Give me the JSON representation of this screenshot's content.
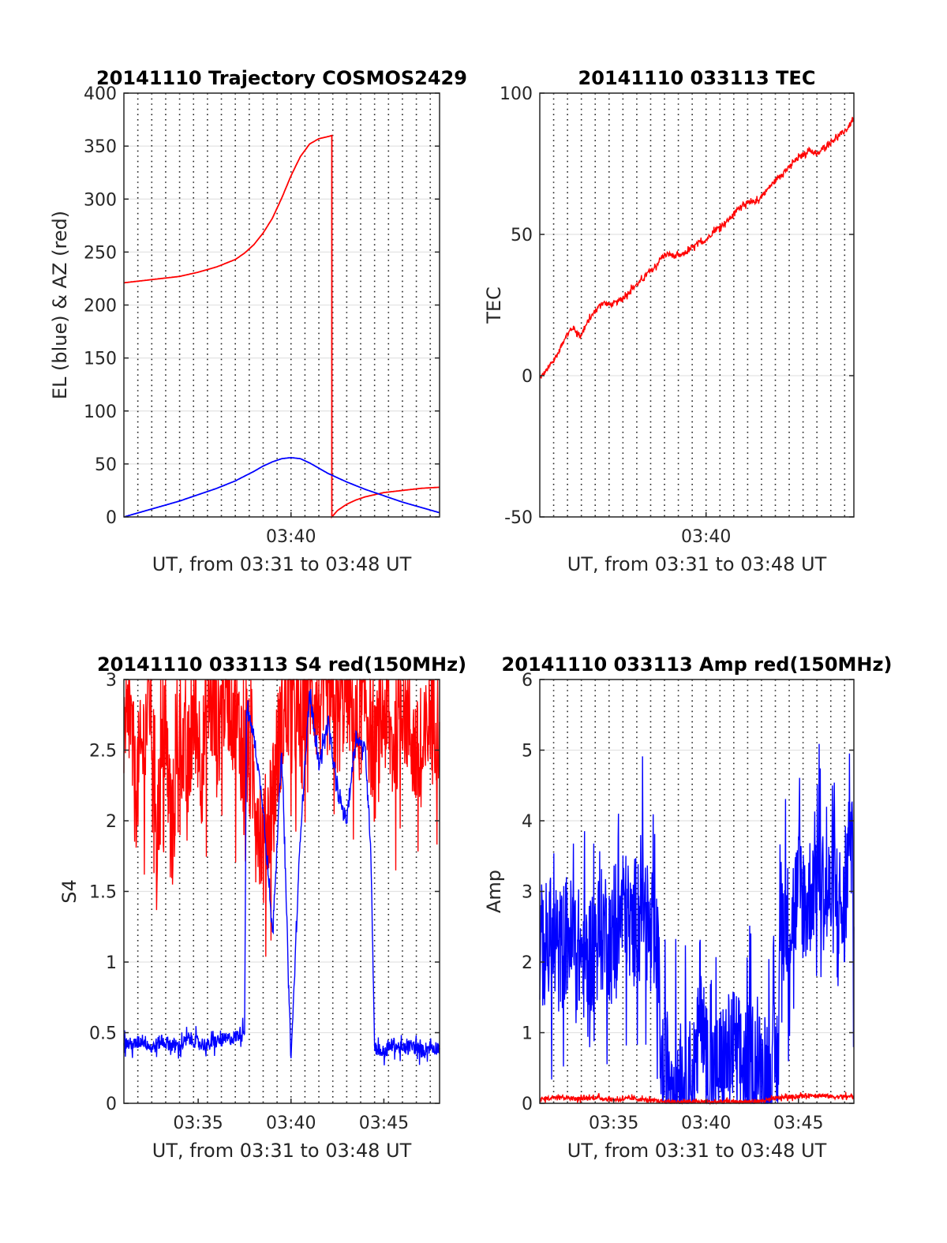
{
  "chart_data": [
    {
      "id": "trajectory",
      "type": "line",
      "title": "20141110 Trajectory COSMOS2429",
      "xlabel": "UT, from 03:31 to 03:48 UT",
      "ylabel": "EL (blue) & AZ (red)",
      "xlim": [
        31.0,
        48.0
      ],
      "ylim": [
        0,
        400
      ],
      "xticks": [
        {
          "v": 40,
          "label": "03:40"
        }
      ],
      "yticks": [
        {
          "v": 0,
          "label": "0"
        },
        {
          "v": 50,
          "label": "50"
        },
        {
          "v": 100,
          "label": "100"
        },
        {
          "v": 150,
          "label": "150"
        },
        {
          "v": 200,
          "label": "200"
        },
        {
          "v": 250,
          "label": "250"
        },
        {
          "v": 300,
          "label": "300"
        },
        {
          "v": 350,
          "label": "350"
        },
        {
          "v": 400,
          "label": "400"
        }
      ],
      "grid": {
        "horizontal": "solid",
        "vertical": "dotted",
        "vertical_step_minutes": 0.75
      },
      "series": [
        {
          "color": "#ff0000",
          "x": [
            31.0,
            32.0,
            33.0,
            34.0,
            35.0,
            36.0,
            37.0,
            37.5,
            38.0,
            38.5,
            39.0,
            39.5,
            40.0,
            40.5,
            41.0,
            41.5,
            42.0,
            42.2,
            42.2,
            42.5,
            43.0,
            43.5,
            44.0,
            44.5,
            45.0,
            46.0,
            47.0,
            48.0
          ],
          "y": [
            221,
            223,
            225,
            227,
            231,
            236,
            243,
            249,
            257,
            268,
            282,
            301,
            322,
            340,
            352,
            357,
            359,
            360,
            0,
            6,
            12,
            16,
            19,
            21,
            23,
            25,
            27,
            28
          ]
        },
        {
          "color": "#0000ff",
          "x": [
            31.0,
            32.0,
            33.0,
            34.0,
            35.0,
            36.0,
            37.0,
            38.0,
            38.5,
            39.0,
            39.5,
            40.0,
            40.5,
            41.0,
            41.5,
            42.0,
            43.0,
            44.0,
            45.0,
            46.0,
            47.0,
            48.0
          ],
          "y": [
            0,
            5,
            10,
            15,
            21,
            27,
            34,
            43,
            48,
            52,
            55,
            56,
            55,
            51,
            46,
            41,
            33,
            26,
            20,
            14,
            9,
            4
          ]
        }
      ]
    },
    {
      "id": "tec",
      "type": "line",
      "title": "20141110 033113 TEC",
      "xlabel": "UT, from 03:31 to 03:48 UT",
      "ylabel": "TEC",
      "xlim": [
        31.0,
        48.0
      ],
      "ylim": [
        -50,
        100
      ],
      "xticks": [
        {
          "v": 40,
          "label": "03:40"
        }
      ],
      "yticks": [
        {
          "v": -50,
          "label": "-50"
        },
        {
          "v": 0,
          "label": "0"
        },
        {
          "v": 50,
          "label": "50"
        },
        {
          "v": 100,
          "label": "100"
        }
      ],
      "grid": {
        "horizontal": "solid",
        "vertical": "dotted",
        "vertical_step_minutes": 0.75
      },
      "series": [
        {
          "color": "#ff0000",
          "x": [
            31.0,
            31.5,
            32.0,
            32.4,
            32.8,
            33.2,
            33.6,
            34.0,
            34.4,
            34.8,
            35.2,
            35.6,
            36.0,
            36.4,
            36.8,
            37.2,
            37.6,
            38.0,
            38.4,
            38.8,
            39.2,
            39.6,
            40.0,
            40.4,
            40.8,
            41.2,
            41.6,
            42.0,
            42.4,
            42.8,
            43.2,
            43.6,
            44.0,
            44.4,
            44.8,
            45.2,
            45.6,
            46.0,
            46.4,
            46.8,
            47.2,
            47.6,
            48.0
          ],
          "y": [
            -1,
            3,
            8,
            14,
            17,
            14,
            19,
            23,
            26,
            25,
            26,
            28,
            31,
            33,
            36,
            38,
            42,
            43,
            42,
            43,
            45,
            47,
            48,
            51,
            53,
            55,
            58,
            61,
            61,
            62,
            65,
            68,
            71,
            73,
            76,
            78,
            80,
            78,
            81,
            83,
            85,
            87,
            91
          ]
        }
      ]
    },
    {
      "id": "s4",
      "type": "line",
      "title": "20141110 033113 S4 red(150MHz)",
      "xlabel": "UT, from 03:31 to 03:48 UT",
      "ylabel": "S4",
      "xlim": [
        31.0,
        48.0
      ],
      "ylim": [
        0,
        3
      ],
      "xticks": [
        {
          "v": 35,
          "label": "03:35"
        },
        {
          "v": 40,
          "label": "03:40"
        },
        {
          "v": 45,
          "label": "03:45"
        }
      ],
      "yticks": [
        {
          "v": 0,
          "label": "0"
        },
        {
          "v": 0.5,
          "label": "0.5"
        },
        {
          "v": 1,
          "label": "1"
        },
        {
          "v": 1.5,
          "label": "1.5"
        },
        {
          "v": 2,
          "label": "2"
        },
        {
          "v": 2.5,
          "label": "2.5"
        },
        {
          "v": 3,
          "label": "3"
        }
      ],
      "grid": {
        "horizontal": "solid",
        "vertical": "dotted",
        "vertical_step_minutes": 0.75
      },
      "series": [
        {
          "color": "#ff0000",
          "x": [
            31.0,
            31.3,
            31.6,
            32.0,
            32.4,
            32.8,
            33.2,
            33.6,
            34.0,
            34.4,
            34.8,
            35.2,
            35.6,
            36.0,
            36.5,
            37.0,
            37.5,
            38.0,
            38.5,
            39.0,
            39.5,
            40.0,
            40.5,
            41.0,
            41.5,
            42.0,
            42.5,
            43.0,
            43.5,
            44.0,
            44.5,
            45.0,
            45.5,
            46.0,
            46.5,
            47.0,
            47.5,
            48.0
          ],
          "y": [
            2.4,
            2.8,
            2.2,
            2.5,
            2.9,
            2.0,
            2.6,
            1.9,
            2.7,
            2.3,
            2.8,
            2.4,
            2.9,
            2.6,
            3.0,
            2.7,
            2.5,
            2.3,
            1.8,
            2.2,
            2.7,
            2.9,
            2.6,
            3.0,
            2.8,
            2.9,
            2.7,
            3.0,
            2.6,
            2.9,
            2.4,
            2.8,
            2.5,
            2.9,
            2.6,
            2.3,
            2.8,
            2.7
          ]
        },
        {
          "color": "#0000ff",
          "x": [
            31.0,
            31.5,
            32.0,
            32.5,
            33.0,
            33.5,
            34.0,
            34.5,
            35.0,
            35.5,
            36.0,
            36.5,
            37.0,
            37.5,
            37.6,
            38.0,
            38.5,
            39.0,
            39.5,
            40.0,
            40.5,
            41.0,
            41.5,
            42.0,
            42.5,
            43.0,
            43.5,
            44.0,
            44.3,
            44.5,
            45.0,
            45.5,
            46.0,
            46.5,
            47.0,
            47.5,
            48.0
          ],
          "y": [
            0.43,
            0.41,
            0.45,
            0.39,
            0.44,
            0.42,
            0.4,
            0.46,
            0.43,
            0.41,
            0.44,
            0.45,
            0.47,
            0.52,
            2.8,
            2.6,
            2.1,
            1.2,
            2.5,
            0.3,
            1.9,
            2.9,
            2.4,
            2.7,
            2.2,
            2.0,
            2.6,
            2.5,
            1.8,
            0.4,
            0.36,
            0.42,
            0.38,
            0.41,
            0.37,
            0.4,
            0.39
          ]
        }
      ]
    },
    {
      "id": "amp",
      "type": "line",
      "title": "20141110 033113 Amp red(150MHz)",
      "xlabel": "UT, from 03:31 to 03:48 UT",
      "ylabel": "Amp",
      "xlim": [
        31.0,
        48.0
      ],
      "ylim": [
        0,
        6
      ],
      "xticks": [
        {
          "v": 35,
          "label": "03:35"
        },
        {
          "v": 40,
          "label": "03:40"
        },
        {
          "v": 45,
          "label": "03:45"
        }
      ],
      "yticks": [
        {
          "v": 0,
          "label": "0"
        },
        {
          "v": 1,
          "label": "1"
        },
        {
          "v": 2,
          "label": "2"
        },
        {
          "v": 3,
          "label": "3"
        },
        {
          "v": 4,
          "label": "4"
        },
        {
          "v": 5,
          "label": "5"
        },
        {
          "v": 6,
          "label": "6"
        }
      ],
      "grid": {
        "horizontal": "solid",
        "vertical": "dotted",
        "vertical_step_minutes": 0.75
      },
      "series": [
        {
          "color": "#0000ff",
          "x": [
            31.0,
            31.5,
            32.0,
            32.5,
            33.0,
            33.5,
            34.0,
            34.5,
            35.0,
            35.5,
            36.0,
            36.5,
            37.0,
            37.4,
            37.6,
            38.0,
            38.5,
            39.0,
            39.5,
            39.7,
            40.0,
            40.5,
            41.0,
            41.5,
            42.0,
            42.5,
            43.0,
            43.5,
            43.9,
            44.0,
            44.5,
            45.0,
            45.5,
            46.0,
            46.5,
            47.0,
            47.5,
            47.8,
            48.0
          ],
          "y": [
            2.2,
            2.3,
            2.1,
            2.4,
            2.2,
            2.0,
            2.3,
            2.5,
            2.2,
            2.8,
            2.4,
            3.1,
            2.2,
            2.0,
            0.4,
            0.5,
            0.4,
            0.3,
            0.5,
            1.7,
            0.5,
            0.4,
            0.6,
            0.8,
            0.5,
            0.6,
            0.4,
            0.5,
            0.6,
            2.7,
            2.5,
            3.0,
            2.8,
            3.4,
            2.9,
            3.0,
            2.6,
            4.3,
            2.5
          ]
        },
        {
          "color": "#ff0000",
          "x": [
            31.0,
            32.0,
            33.0,
            34.0,
            35.0,
            36.0,
            37.0,
            38.0,
            39.0,
            40.0,
            41.0,
            42.0,
            43.0,
            44.0,
            45.0,
            46.0,
            47.0,
            48.0
          ],
          "y": [
            0.05,
            0.1,
            0.06,
            0.08,
            0.05,
            0.07,
            0.04,
            0.02,
            0.02,
            0.02,
            0.02,
            0.02,
            0.03,
            0.08,
            0.1,
            0.12,
            0.09,
            0.1
          ]
        }
      ]
    }
  ]
}
